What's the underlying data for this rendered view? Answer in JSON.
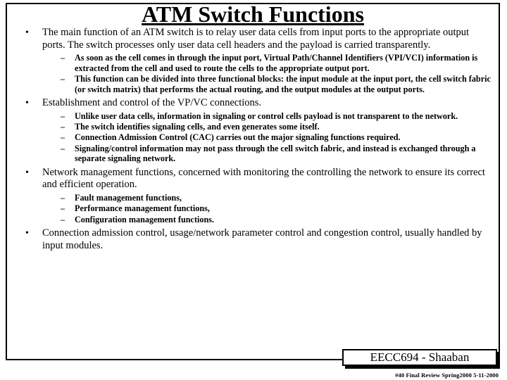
{
  "title": "ATM Switch Functions",
  "bullets": {
    "b0": {
      "text": "The main function of an ATM switch is to relay user data cells from input ports to the appropriate output ports.  The switch processes only user data cell headers and the payload is carried transparently.",
      "s0": "As soon as the cell comes in through the input port,  Virtual Path/Channel Identifiers (VPI/VCI) information is extracted from the cell and used to route the cells to the appropriate output port.",
      "s1": "This function can be divided into three functional blocks: the input module at the input port, the cell switch fabric (or switch matrix) that performs the actual routing, and the output modules at the output ports."
    },
    "b1": {
      "text": "Establishment and control of the VP/VC connections.",
      "s0": "Unlike user data cells, information in signaling or control cells payload is not transparent to the network.",
      "s1": "The switch identifies signaling cells, and even generates some itself.",
      "s2": "Connection Admission Control (CAC) carries out the major signaling functions required.",
      "s3": "Signaling/control information may not pass through the cell switch fabric, and instead is exchanged through a separate signaling network."
    },
    "b2": {
      "text": "Network management functions, concerned with monitoring the controlling the network to ensure its correct and efficient operation.",
      "s0": "Fault management functions,",
      "s1": "Performance management functions,",
      "s2": "Configuration management functions."
    },
    "b3": {
      "text": "Connection admission control, usage/network parameter control and congestion control, usually handled by  input modules."
    }
  },
  "badge": "EECC694 - Shaaban",
  "footer": "#40  Final Review   Spring2000   5-11-2000"
}
